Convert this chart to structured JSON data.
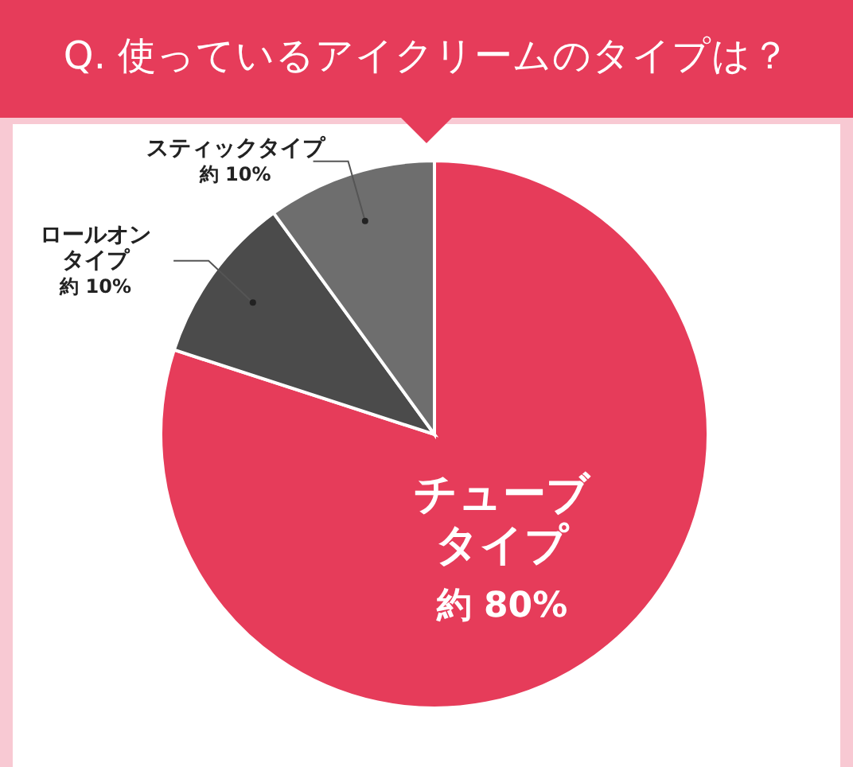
{
  "chart_data": {
    "type": "pie",
    "title": "Q. 使っているアイクリームのタイプは？",
    "categories": [
      "チューブタイプ",
      "ロールオンタイプ",
      "スティックタイプ"
    ],
    "values": [
      80,
      10,
      10
    ],
    "colors": [
      "#e63c5a",
      "#4b4b4b",
      "#6e6e6e"
    ],
    "value_labels": [
      "約 80%",
      "約 10%",
      "約 10%"
    ]
  }
}
